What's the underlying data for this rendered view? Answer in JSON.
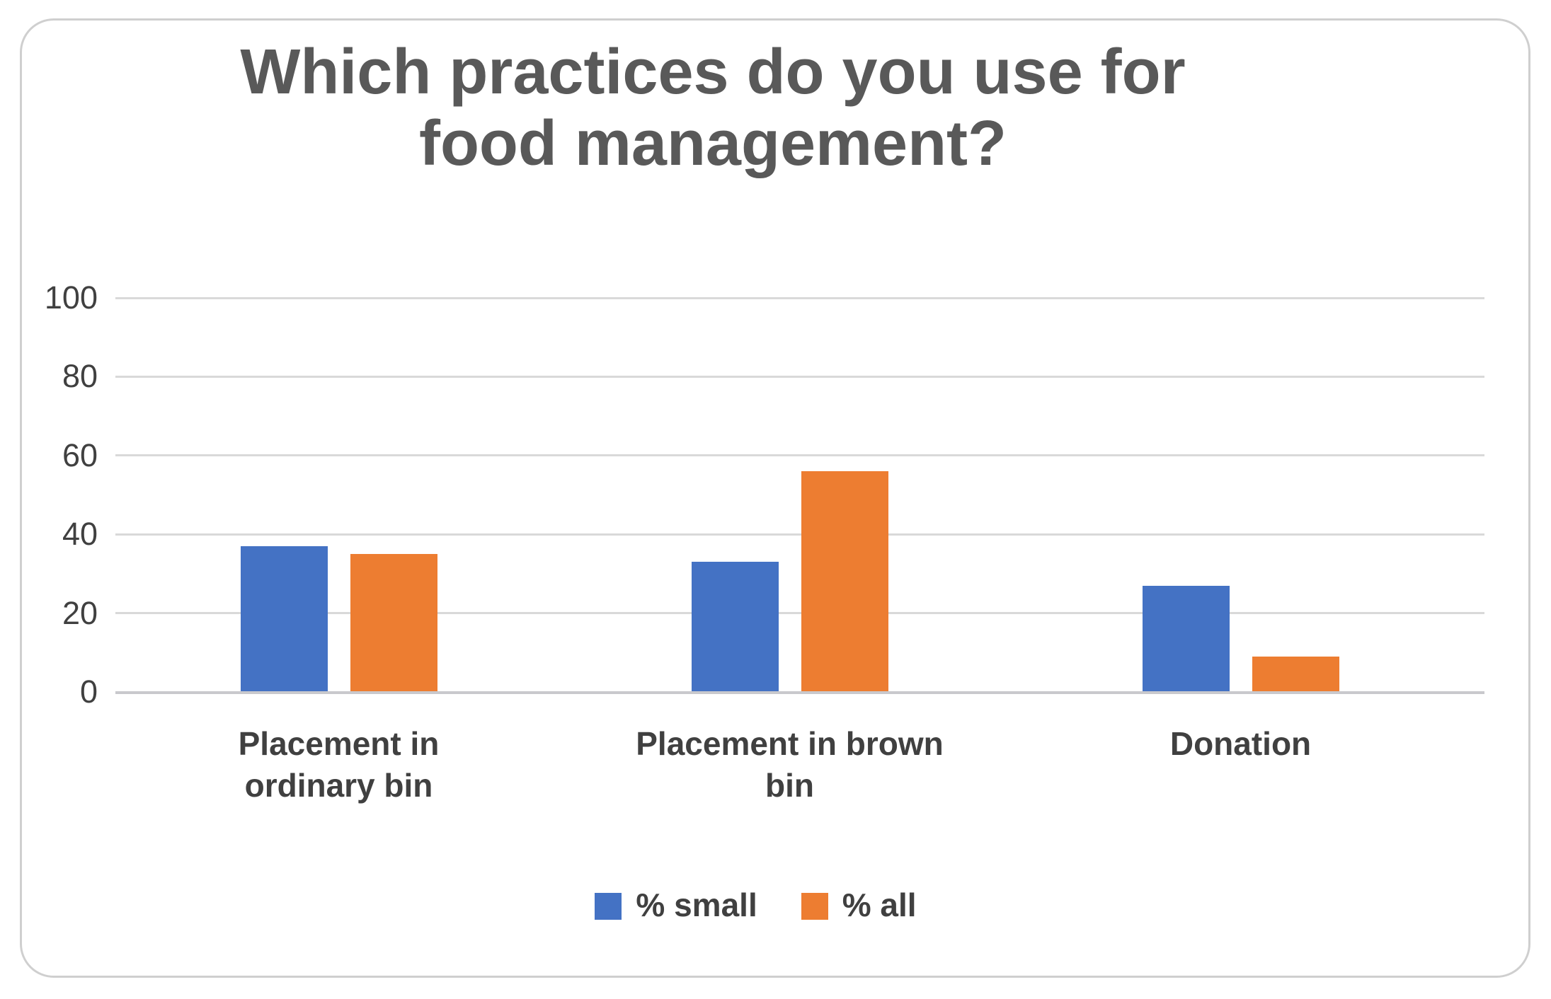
{
  "chart_data": {
    "type": "bar",
    "title": "Which practices do you use for food management?",
    "title_lines": [
      "Which practices do you use for",
      "food management?"
    ],
    "categories": [
      "Placement in ordinary bin",
      "Placement in brown bin",
      "Donation"
    ],
    "categories_wrapped": [
      "Placement in\nordinary bin",
      "Placement in brown\nbin",
      "Donation"
    ],
    "series": [
      {
        "name": "% small",
        "color": "#4472C4",
        "values": [
          37,
          33,
          27
        ]
      },
      {
        "name": "% all",
        "color": "#ED7D31",
        "values": [
          35,
          56,
          9
        ]
      }
    ],
    "xlabel": "",
    "ylabel": "",
    "ylim": [
      0,
      100
    ],
    "yticks": [
      100,
      80,
      60,
      40,
      20,
      0
    ],
    "grid": true,
    "legend_position": "bottom"
  },
  "colors": {
    "series_small": "#4472C4",
    "series_all": "#ED7D31",
    "gridline": "#D9D9D9",
    "zero_axis": "#C9C9CD",
    "title_text": "#595959",
    "label_text": "#404040",
    "card_border": "#CFCFCF",
    "background": "#FFFFFF"
  }
}
